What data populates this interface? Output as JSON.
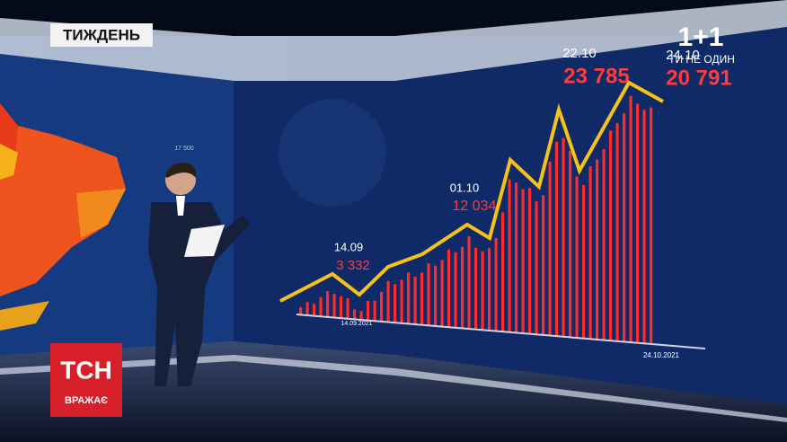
{
  "banner": {
    "title": "ТИЖДЕНЬ"
  },
  "channel_logo": {
    "name": "1+1",
    "slogan": "ТИ НЕ ОДИН"
  },
  "show_logo": {
    "name": "ТСН",
    "tagline": "ВРАЖАЄ"
  },
  "screen": {
    "scale_label": "17 500",
    "callouts": [
      {
        "date": "14.09",
        "cases": "3 332"
      },
      {
        "date": "01.10",
        "cases": "12 034"
      },
      {
        "date": "22.10",
        "cases": "23 785"
      },
      {
        "date": "24.10",
        "cases": "20 791"
      }
    ],
    "axis_dates": [
      "14.09.2021",
      "24.10.2021"
    ]
  }
}
